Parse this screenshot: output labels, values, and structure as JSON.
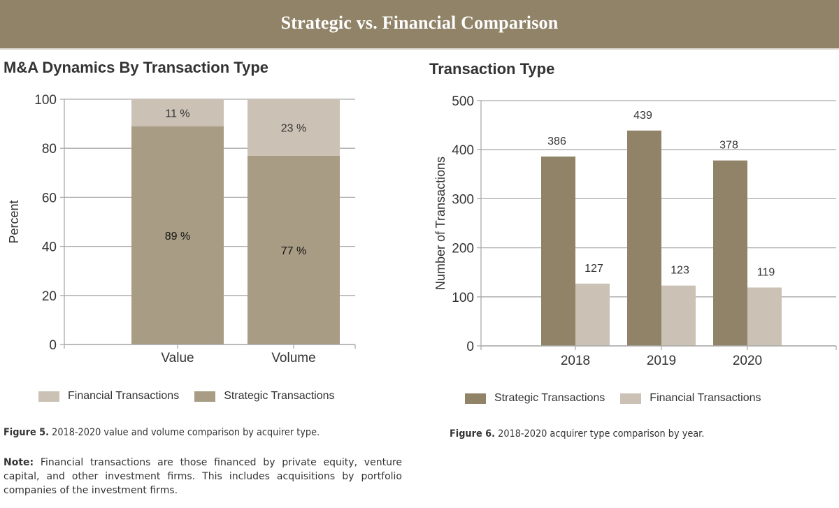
{
  "banner": {
    "title": "Strategic vs. Financial Comparison"
  },
  "colors": {
    "strategic_left": "#a89c84",
    "strategic_right": "#918368",
    "financial": "#cbc2b5",
    "grid": "#aaaaaa"
  },
  "chart_data": [
    {
      "id": "figure5",
      "type": "bar",
      "stacked": true,
      "title": "M&A Dynamics By Transaction Type",
      "xlabel": "",
      "ylabel": "Percent",
      "ylim": [
        0,
        100
      ],
      "yticks": [
        0,
        20,
        40,
        60,
        80,
        100
      ],
      "grid": true,
      "categories": [
        "Value",
        "Volume"
      ],
      "series": [
        {
          "name": "Strategic Transactions",
          "values": [
            89,
            77
          ],
          "labels": [
            "89 %",
            "77 %"
          ]
        },
        {
          "name": "Financial Transactions",
          "values": [
            11,
            23
          ],
          "labels": [
            "11 %",
            "23 %"
          ]
        }
      ],
      "legend": {
        "position": "bottom",
        "entries": [
          "Financial Transactions",
          "Strategic Transactions"
        ]
      }
    },
    {
      "id": "figure6",
      "type": "bar",
      "stacked": false,
      "title": "Transaction Type",
      "xlabel": "",
      "ylabel": "Number of Transactions",
      "ylim": [
        0,
        500
      ],
      "yticks": [
        0,
        100,
        200,
        300,
        400,
        500
      ],
      "grid": true,
      "categories": [
        "2018",
        "2019",
        "2020"
      ],
      "series": [
        {
          "name": "Strategic Transactions",
          "values": [
            386,
            439,
            378
          ]
        },
        {
          "name": "Financial Transactions",
          "values": [
            127,
            123,
            119
          ]
        }
      ],
      "legend": {
        "position": "bottom",
        "entries": [
          "Strategic Transactions",
          "Financial Transactions"
        ]
      }
    }
  ],
  "captions": {
    "fig5_label": "Figure 5.",
    "fig5_text": " 2018-2020 value and volume comparison by acquirer type.",
    "fig6_label": "Figure 6.",
    "fig6_text": " 2018-2020 acquirer type comparison by year.",
    "note_label": "Note:",
    "note_text": " Financial transactions are those financed by private equity, venture capital, and other investment firms. This includes acquisitions by portfolio companies of the investment firms."
  }
}
